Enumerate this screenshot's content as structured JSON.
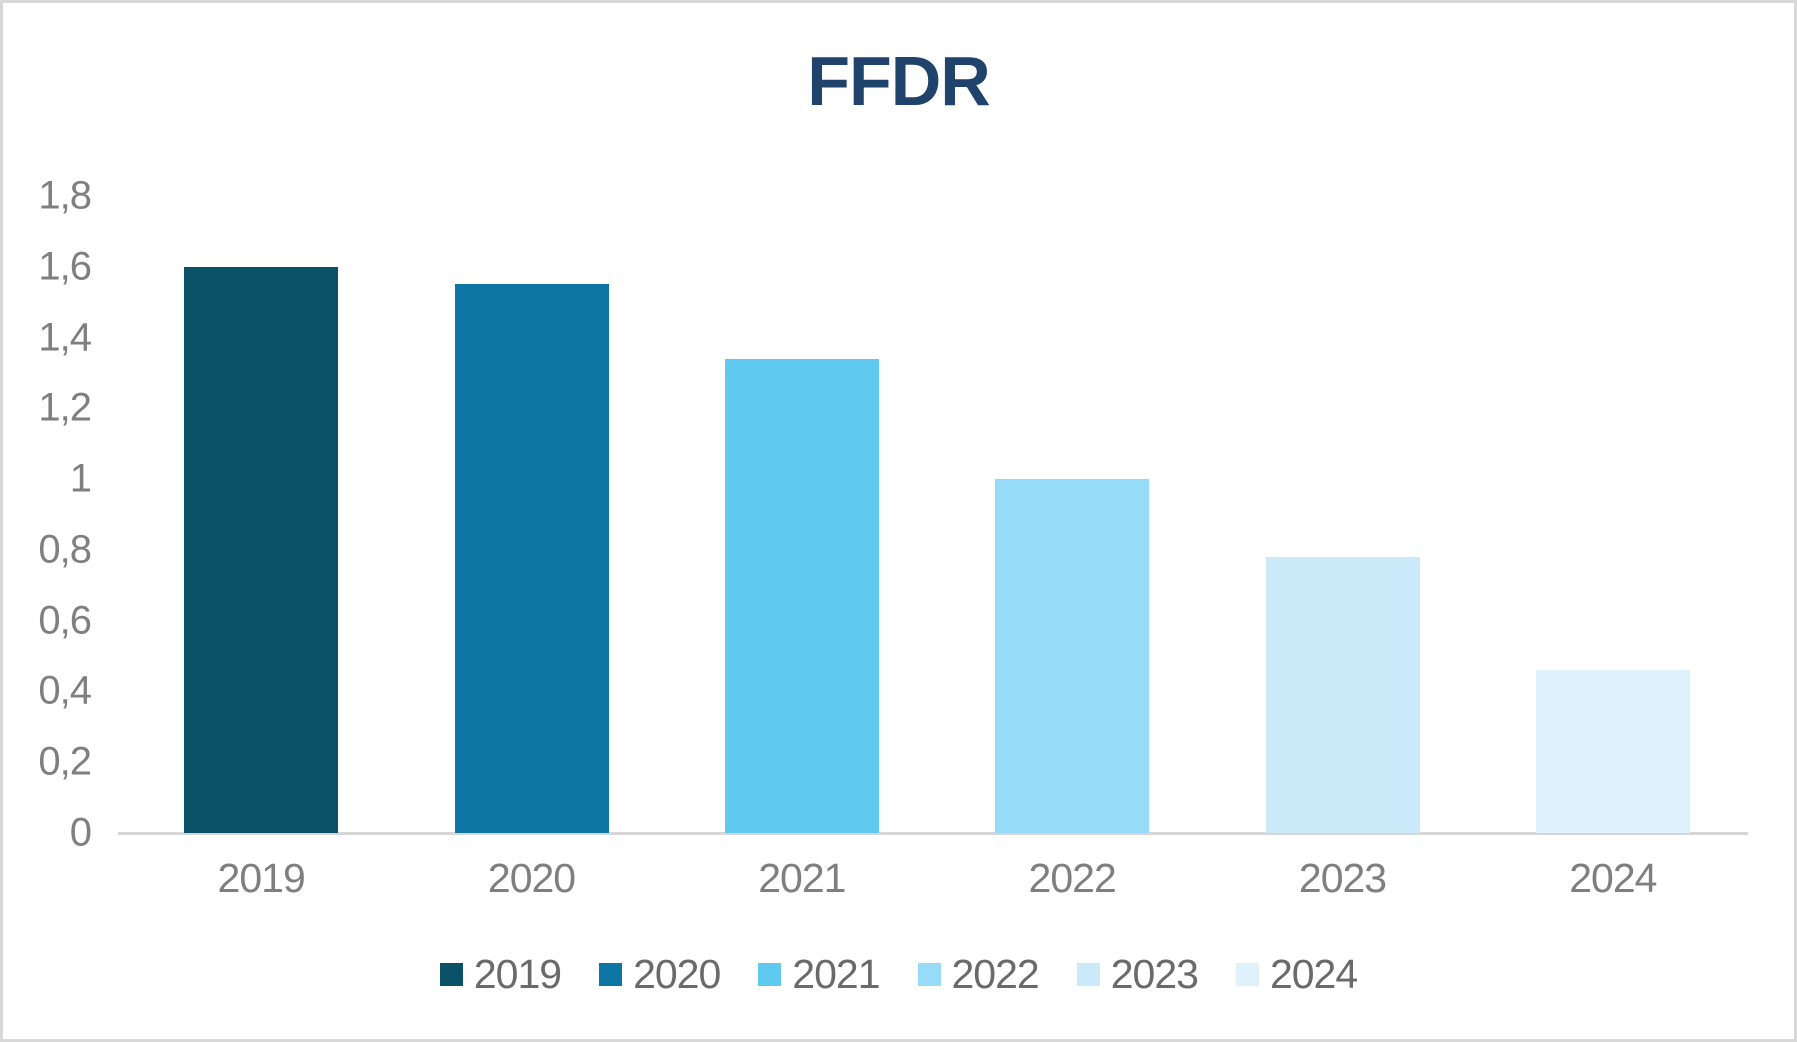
{
  "chart_data": {
    "type": "bar",
    "title": "FFDR",
    "categories": [
      "2019",
      "2020",
      "2021",
      "2022",
      "2023",
      "2024"
    ],
    "values": [
      1.6,
      1.55,
      1.34,
      1.0,
      0.78,
      0.46
    ],
    "bar_colors": [
      "#0B5269",
      "#0E76A4",
      "#5FC9F0",
      "#96DBF7",
      "#CBEAF9",
      "#DFF1FA"
    ],
    "xlabel": "",
    "ylabel": "",
    "ylim": [
      0,
      1.8
    ],
    "y_ticks": [
      {
        "value": 0,
        "label": "0"
      },
      {
        "value": 0.2,
        "label": "0,2"
      },
      {
        "value": 0.4,
        "label": "0,4"
      },
      {
        "value": 0.6,
        "label": "0,6"
      },
      {
        "value": 0.8,
        "label": "0,8"
      },
      {
        "value": 1,
        "label": "1"
      },
      {
        "value": 1.2,
        "label": "1,2"
      },
      {
        "value": 1.4,
        "label": "1,4"
      },
      {
        "value": 1.6,
        "label": "1,6"
      },
      {
        "value": 1.8,
        "label": "1,8"
      }
    ],
    "decimal_separator": ",",
    "grid": false,
    "legend": {
      "position": "bottom",
      "entries": [
        {
          "label": "2019",
          "color": "#0B5269"
        },
        {
          "label": "2020",
          "color": "#0E76A4"
        },
        {
          "label": "2021",
          "color": "#5FC9F0"
        },
        {
          "label": "2022",
          "color": "#96DBF7"
        },
        {
          "label": "2023",
          "color": "#CBEAF9"
        },
        {
          "label": "2024",
          "color": "#DFF1FA"
        }
      ]
    },
    "colors": {
      "title_text": "#1F436B",
      "axis_text": "#7F7F7F",
      "legend_text": "#6A6A6A",
      "axis_line": "#D6D6D6",
      "canvas_border": "#D8D8D8",
      "background": "#FFFFFF"
    }
  }
}
